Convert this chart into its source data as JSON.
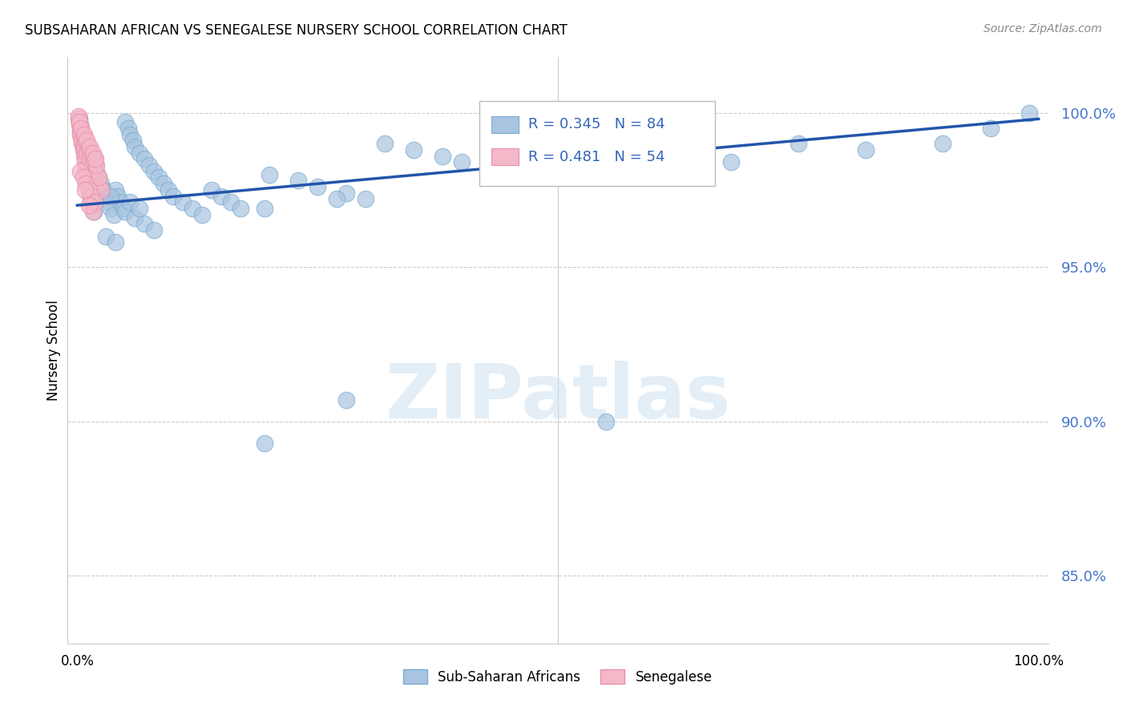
{
  "title": "SUBSAHARAN AFRICAN VS SENEGALESE NURSERY SCHOOL CORRELATION CHART",
  "source": "Source: ZipAtlas.com",
  "ylabel": "Nursery School",
  "ytick_labels": [
    "100.0%",
    "95.0%",
    "90.0%",
    "85.0%"
  ],
  "ytick_values": [
    1.0,
    0.95,
    0.9,
    0.85
  ],
  "legend1_label": "Sub-Saharan Africans",
  "legend2_label": "Senegalese",
  "r_blue": "R = 0.345",
  "n_blue": "N = 84",
  "r_pink": "R = 0.481",
  "n_pink": "N = 54",
  "blue_color": "#a8c4e0",
  "blue_edge": "#7aaad0",
  "pink_color": "#f4b8c8",
  "pink_edge": "#e890a8",
  "trendline_color": "#2255aa",
  "watermark": "ZIPatlas",
  "ylim_min": 0.828,
  "ylim_max": 1.018,
  "xlim_min": -0.01,
  "xlim_max": 1.01,
  "blue_trendline_x0": 0.0,
  "blue_trendline_y0": 0.97,
  "blue_trendline_x1": 1.0,
  "blue_trendline_y1": 0.998,
  "blue_x": [
    0.002,
    0.003,
    0.004,
    0.005,
    0.006,
    0.007,
    0.008,
    0.009,
    0.01,
    0.011,
    0.012,
    0.013,
    0.014,
    0.015,
    0.016,
    0.017,
    0.018,
    0.019,
    0.02,
    0.022,
    0.025,
    0.027,
    0.03,
    0.033,
    0.035,
    0.038,
    0.04,
    0.042,
    0.045,
    0.048,
    0.05,
    0.053,
    0.055,
    0.058,
    0.06,
    0.065,
    0.07,
    0.075,
    0.08,
    0.085,
    0.09,
    0.095,
    0.1,
    0.11,
    0.12,
    0.13,
    0.14,
    0.15,
    0.16,
    0.17,
    0.05,
    0.06,
    0.07,
    0.08,
    0.03,
    0.04,
    0.025,
    0.035,
    0.055,
    0.065,
    0.2,
    0.23,
    0.25,
    0.28,
    0.3,
    0.32,
    0.35,
    0.38,
    0.4,
    0.43,
    0.48,
    0.53,
    0.6,
    0.68,
    0.75,
    0.82,
    0.9,
    0.95,
    0.28,
    0.195,
    0.55,
    0.195,
    0.99,
    0.27
  ],
  "blue_y": [
    0.998,
    0.996,
    0.994,
    0.992,
    0.99,
    0.988,
    0.986,
    0.984,
    0.982,
    0.98,
    0.978,
    0.976,
    0.974,
    0.972,
    0.97,
    0.968,
    0.985,
    0.983,
    0.981,
    0.979,
    0.977,
    0.975,
    0.973,
    0.971,
    0.969,
    0.967,
    0.975,
    0.973,
    0.971,
    0.969,
    0.997,
    0.995,
    0.993,
    0.991,
    0.989,
    0.987,
    0.985,
    0.983,
    0.981,
    0.979,
    0.977,
    0.975,
    0.973,
    0.971,
    0.969,
    0.967,
    0.975,
    0.973,
    0.971,
    0.969,
    0.968,
    0.966,
    0.964,
    0.962,
    0.96,
    0.958,
    0.975,
    0.973,
    0.971,
    0.969,
    0.98,
    0.978,
    0.976,
    0.974,
    0.972,
    0.99,
    0.988,
    0.986,
    0.984,
    0.982,
    0.99,
    0.988,
    0.986,
    0.984,
    0.99,
    0.988,
    0.99,
    0.995,
    0.907,
    0.969,
    0.9,
    0.893,
    1.0,
    0.972
  ],
  "pink_x": [
    0.001,
    0.002,
    0.003,
    0.004,
    0.005,
    0.006,
    0.007,
    0.008,
    0.009,
    0.01,
    0.011,
    0.012,
    0.013,
    0.014,
    0.015,
    0.016,
    0.017,
    0.018,
    0.019,
    0.02,
    0.022,
    0.025,
    0.003,
    0.005,
    0.007,
    0.01,
    0.013,
    0.016,
    0.019,
    0.022,
    0.002,
    0.004,
    0.006,
    0.008,
    0.011,
    0.014,
    0.017,
    0.02,
    0.003,
    0.006,
    0.009,
    0.012,
    0.015,
    0.018,
    0.001,
    0.002,
    0.004,
    0.007,
    0.01,
    0.013,
    0.016,
    0.019,
    0.008,
    0.012
  ],
  "pink_y": [
    0.998,
    0.996,
    0.994,
    0.992,
    0.99,
    0.988,
    0.986,
    0.984,
    0.982,
    0.98,
    0.978,
    0.976,
    0.974,
    0.972,
    0.97,
    0.968,
    0.985,
    0.983,
    0.981,
    0.979,
    0.977,
    0.975,
    0.993,
    0.991,
    0.989,
    0.987,
    0.985,
    0.983,
    0.981,
    0.979,
    0.997,
    0.995,
    0.993,
    0.991,
    0.989,
    0.987,
    0.985,
    0.983,
    0.981,
    0.979,
    0.977,
    0.975,
    0.973,
    0.971,
    0.999,
    0.997,
    0.995,
    0.993,
    0.991,
    0.989,
    0.987,
    0.985,
    0.975,
    0.97
  ]
}
